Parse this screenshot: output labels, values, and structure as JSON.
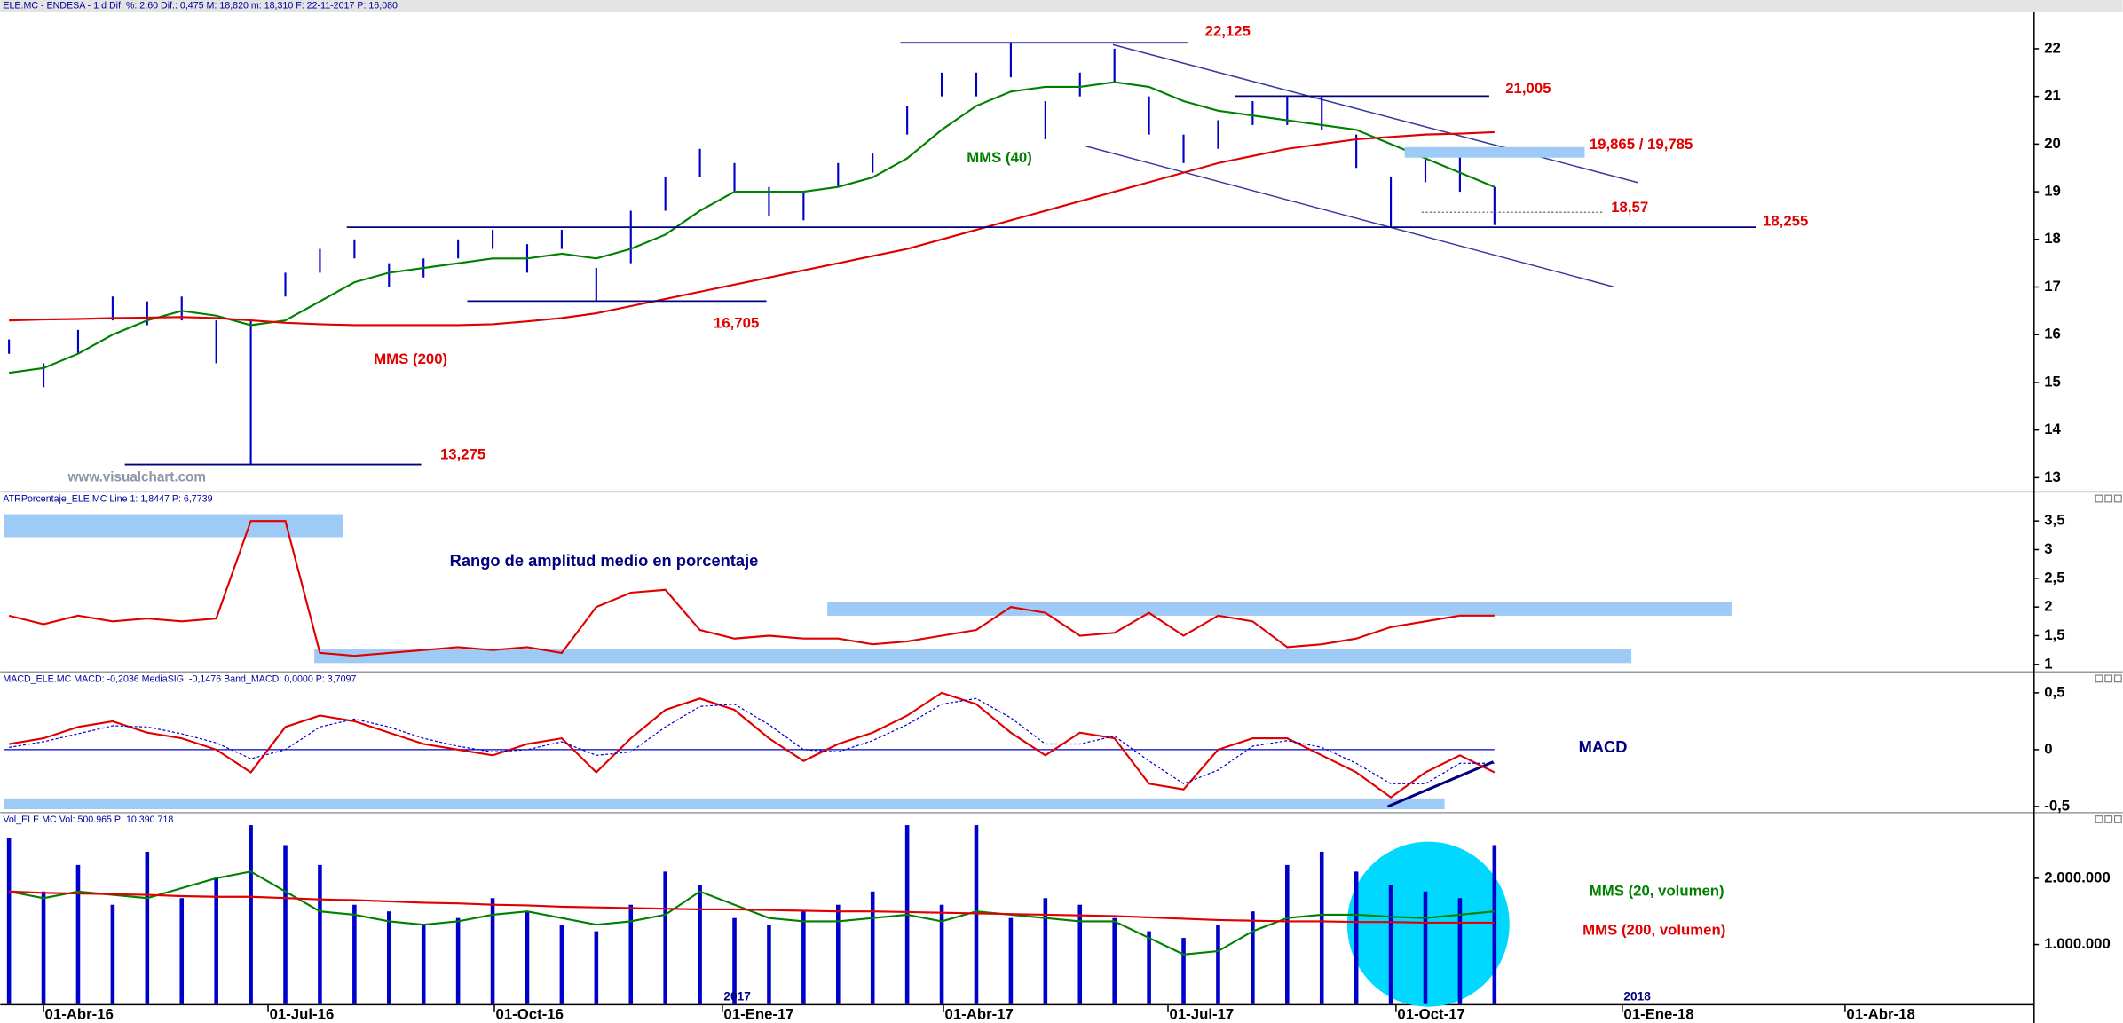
{
  "chart_data": [
    {
      "type": "price",
      "title": "ELE.MC - ENDESA - 1 d  Dif. %: 2,60  Dif.: 0,475  M: 18,820  m: 18,310  F: 22-11-2017  P: 16,080",
      "x": [
        -2,
        0,
        2,
        4,
        6,
        8,
        10,
        12,
        14,
        16,
        18,
        20,
        22,
        24,
        26,
        28,
        30,
        32,
        34,
        36,
        38,
        40,
        42,
        44,
        46,
        48,
        50,
        52,
        54,
        56,
        58,
        60,
        62,
        64,
        66,
        68,
        70,
        72,
        74,
        76,
        78,
        80,
        82,
        84
      ],
      "high": [
        15.9,
        15.4,
        16.1,
        16.8,
        16.7,
        16.8,
        16.3,
        16.3,
        17.3,
        17.8,
        18.0,
        17.5,
        17.6,
        18.0,
        18.2,
        17.9,
        18.2,
        17.4,
        18.6,
        19.3,
        19.9,
        19.6,
        19.1,
        19.0,
        19.6,
        19.8,
        20.8,
        21.5,
        21.5,
        22.125,
        20.9,
        21.5,
        22.0,
        21.0,
        20.2,
        20.5,
        20.9,
        21.0,
        21.0,
        20.2,
        19.3,
        19.9,
        19.9,
        19.1
      ],
      "low": [
        15.6,
        14.9,
        15.6,
        16.3,
        16.2,
        16.3,
        15.4,
        13.275,
        16.8,
        17.3,
        17.6,
        17.0,
        17.2,
        17.6,
        17.8,
        17.3,
        17.8,
        16.7,
        17.5,
        18.6,
        19.3,
        19.0,
        18.5,
        18.4,
        19.1,
        19.4,
        20.2,
        21.0,
        21.0,
        21.4,
        20.1,
        21.0,
        21.3,
        20.2,
        19.6,
        19.9,
        20.4,
        20.4,
        20.3,
        19.5,
        18.255,
        19.2,
        19.0,
        18.3
      ],
      "bar_color": "#0000cc",
      "series": [
        {
          "name": "MMS (40)",
          "color": "#008000",
          "values": [
            15.2,
            15.3,
            15.6,
            16.0,
            16.3,
            16.5,
            16.4,
            16.2,
            16.3,
            16.7,
            17.1,
            17.3,
            17.4,
            17.5,
            17.6,
            17.6,
            17.7,
            17.6,
            17.8,
            18.1,
            18.6,
            19.0,
            19.0,
            19.0,
            19.1,
            19.3,
            19.7,
            20.3,
            20.8,
            21.1,
            21.2,
            21.2,
            21.3,
            21.2,
            20.9,
            20.7,
            20.6,
            20.5,
            20.4,
            20.3,
            20.0,
            19.7,
            19.4,
            19.1
          ]
        },
        {
          "name": "MMS (200)",
          "color": "#e00000",
          "values": [
            16.3,
            16.32,
            16.33,
            16.35,
            16.36,
            16.37,
            16.35,
            16.3,
            16.25,
            16.22,
            16.2,
            16.2,
            16.2,
            16.2,
            16.22,
            16.28,
            16.35,
            16.45,
            16.6,
            16.75,
            16.9,
            17.05,
            17.2,
            17.35,
            17.5,
            17.65,
            17.8,
            18.0,
            18.2,
            18.4,
            18.6,
            18.8,
            19.0,
            19.2,
            19.4,
            19.6,
            19.75,
            19.9,
            20.0,
            20.1,
            20.15,
            20.2,
            20.22,
            20.25
          ]
        }
      ],
      "levels": [
        {
          "value": 22.125,
          "label": "22,125"
        },
        {
          "value": 21.005,
          "label": "21,005"
        },
        {
          "value": 19.865,
          "value2": 19.785,
          "label": "19,865 / 19,785"
        },
        {
          "value": 18.57,
          "label": "18,57"
        },
        {
          "value": 18.255,
          "label": "18,255"
        },
        {
          "value": 16.705,
          "label": "16,705"
        },
        {
          "value": 13.275,
          "label": "13,275"
        }
      ],
      "watermark": "www.visualchart.com",
      "xlim": [
        -2.27,
        115.2
      ],
      "ylim": [
        12.716,
        22.739
      ],
      "yticks": [
        13,
        14,
        15,
        16,
        17,
        18,
        19,
        20,
        21,
        22
      ]
    },
    {
      "type": "line",
      "title": "ATRPorcentaje_ELE.MC  Line 1: 1,8447  P: 6,7739",
      "annotation": "Rango de amplitud medio en porcentaje",
      "x": [
        -2,
        0,
        2,
        4,
        6,
        8,
        10,
        12,
        14,
        16,
        18,
        20,
        22,
        24,
        26,
        28,
        30,
        32,
        34,
        36,
        38,
        40,
        42,
        44,
        46,
        48,
        50,
        52,
        54,
        56,
        58,
        60,
        62,
        64,
        66,
        68,
        70,
        72,
        74,
        76,
        78,
        80,
        82,
        84
      ],
      "series": [
        {
          "color": "#e00000",
          "values": [
            1.85,
            1.7,
            1.85,
            1.75,
            1.8,
            1.75,
            1.8,
            3.5,
            3.5,
            1.2,
            1.15,
            1.2,
            1.25,
            1.3,
            1.25,
            1.3,
            1.2,
            2.0,
            2.25,
            2.3,
            1.6,
            1.45,
            1.5,
            1.45,
            1.45,
            1.35,
            1.4,
            1.5,
            1.6,
            2.0,
            1.9,
            1.5,
            1.55,
            1.9,
            1.5,
            1.85,
            1.75,
            1.3,
            1.35,
            1.45,
            1.65,
            1.75,
            1.85,
            1.85
          ]
        }
      ],
      "xlim": [
        -2.27,
        115.2
      ],
      "ylim": [
        0.882,
        3.995
      ],
      "yticks": [
        1,
        {
          "value": 1.5,
          "label": "1,5"
        },
        2,
        {
          "value": 2.5,
          "label": "2,5"
        },
        3,
        {
          "value": 3.5,
          "label": "3,5"
        }
      ]
    },
    {
      "type": "line",
      "title": "MACD_ELE.MC  MACD: -0,2036  MediaSIG: -0,1476  Band_MACD: 0,0000  P: 3,7097",
      "annotation": "MACD",
      "zero_line": true,
      "x": [
        -2,
        0,
        2,
        4,
        6,
        8,
        10,
        12,
        14,
        16,
        18,
        20,
        22,
        24,
        26,
        28,
        30,
        32,
        34,
        36,
        38,
        40,
        42,
        44,
        46,
        48,
        50,
        52,
        54,
        56,
        58,
        60,
        62,
        64,
        66,
        68,
        70,
        72,
        74,
        76,
        78,
        80,
        82,
        84
      ],
      "series": [
        {
          "color": "#e00000",
          "values": [
            0.05,
            0.1,
            0.2,
            0.25,
            0.15,
            0.1,
            0.0,
            -0.2,
            0.2,
            0.3,
            0.25,
            0.15,
            0.05,
            0.0,
            -0.05,
            0.05,
            0.1,
            -0.2,
            0.1,
            0.35,
            0.45,
            0.35,
            0.1,
            -0.1,
            0.05,
            0.15,
            0.3,
            0.5,
            0.4,
            0.15,
            -0.05,
            0.15,
            0.1,
            -0.3,
            -0.35,
            0.0,
            0.1,
            0.1,
            -0.05,
            -0.2,
            -0.42,
            -0.2,
            -0.05,
            -0.2
          ]
        },
        {
          "color": "#0000cc",
          "style": "dotted",
          "values": [
            0.02,
            0.07,
            0.14,
            0.21,
            0.2,
            0.14,
            0.06,
            -0.08,
            0.0,
            0.2,
            0.27,
            0.2,
            0.1,
            0.03,
            -0.02,
            0.0,
            0.07,
            -0.05,
            -0.02,
            0.2,
            0.38,
            0.4,
            0.22,
            0.0,
            -0.02,
            0.08,
            0.22,
            0.4,
            0.45,
            0.28,
            0.05,
            0.05,
            0.12,
            -0.1,
            -0.3,
            -0.18,
            0.03,
            0.08,
            0.02,
            -0.12,
            -0.3,
            -0.3,
            -0.12,
            -0.12
          ]
        }
      ],
      "xlim": [
        -2.27,
        115.2
      ],
      "ylim": [
        -0.548,
        0.679
      ],
      "yticks": [
        {
          "value": 0.5,
          "label": "0,5"
        },
        0,
        {
          "value": -0.5,
          "label": "-0,5"
        }
      ]
    },
    {
      "type": "volume",
      "title": "Vol_ELE.MC  Vol: 500.965  P: 10.390.718",
      "x": [
        -2,
        0,
        2,
        4,
        6,
        8,
        10,
        12,
        14,
        16,
        18,
        20,
        22,
        24,
        26,
        28,
        30,
        32,
        34,
        36,
        38,
        40,
        42,
        44,
        46,
        48,
        50,
        52,
        54,
        56,
        58,
        60,
        62,
        64,
        66,
        68,
        70,
        72,
        74,
        76,
        78,
        80,
        82,
        84
      ],
      "values": [
        2600000,
        1800000,
        2200000,
        1600000,
        2400000,
        1700000,
        2000000,
        2800000,
        2500000,
        2200000,
        1600000,
        1500000,
        1300000,
        1400000,
        1700000,
        1500000,
        1300000,
        1200000,
        1600000,
        2100000,
        1900000,
        1400000,
        1300000,
        1500000,
        1600000,
        1800000,
        2800000,
        1600000,
        2800000,
        1400000,
        1700000,
        1600000,
        1400000,
        1200000,
        1100000,
        1300000,
        1500000,
        2200000,
        2400000,
        2100000,
        1900000,
        1800000,
        1700000,
        2500000
      ],
      "color": "#0000cc",
      "series": [
        {
          "name": "MMS (20, volumen)",
          "color": "#008000",
          "values": [
            1800000,
            1700000,
            1800000,
            1750000,
            1700000,
            1850000,
            2000000,
            2100000,
            1800000,
            1500000,
            1450000,
            1350000,
            1300000,
            1350000,
            1450000,
            1500000,
            1400000,
            1300000,
            1350000,
            1450000,
            1800000,
            1600000,
            1400000,
            1350000,
            1350000,
            1400000,
            1450000,
            1350000,
            1500000,
            1450000,
            1400000,
            1350000,
            1350000,
            1100000,
            850000,
            900000,
            1200000,
            1400000,
            1450000,
            1450000,
            1420000,
            1400000,
            1450000,
            1500000
          ]
        },
        {
          "name": "MMS (200, volumen)",
          "color": "#e00000",
          "values": [
            1800000,
            1780000,
            1770000,
            1760000,
            1750000,
            1730000,
            1720000,
            1720000,
            1700000,
            1680000,
            1670000,
            1650000,
            1630000,
            1620000,
            1600000,
            1590000,
            1570000,
            1560000,
            1550000,
            1540000,
            1530000,
            1530000,
            1520000,
            1510000,
            1500000,
            1500000,
            1490000,
            1480000,
            1470000,
            1460000,
            1450000,
            1440000,
            1430000,
            1410000,
            1390000,
            1370000,
            1360000,
            1350000,
            1350000,
            1340000,
            1340000,
            1330000,
            1330000,
            1330000
          ]
        }
      ],
      "xlim": [
        -2.27,
        115.2
      ],
      "ylim": [
        102000,
        2980000
      ],
      "yticks": [
        {
          "value": 1000000,
          "label": "1.000.000"
        },
        {
          "value": 2000000,
          "label": "2.000.000"
        }
      ],
      "xticks": [
        {
          "value": 0,
          "label": "01-Abr-16"
        },
        {
          "value": 13,
          "label": "01-Jul-16"
        },
        {
          "value": 26.1,
          "label": "01-Oct-16"
        },
        {
          "value": 39.3,
          "label": "01-Ene-17"
        },
        {
          "value": 52.1,
          "label": "01-Abr-17"
        },
        {
          "value": 65.1,
          "label": "01-Jul-17"
        },
        {
          "value": 78.3,
          "label": "01-Oct-17"
        },
        {
          "value": 91.4,
          "label": "01-Ene-18"
        },
        {
          "value": 104.3,
          "label": "01-Abr-18"
        }
      ],
      "x_year_labels": [
        {
          "value": 39.3,
          "label": "2017"
        },
        {
          "value": 91.4,
          "label": "2018"
        }
      ]
    }
  ]
}
